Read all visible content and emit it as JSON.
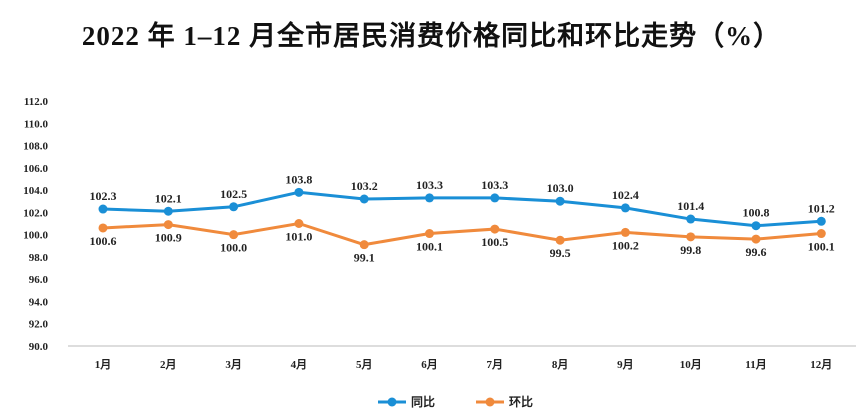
{
  "chart_data": {
    "type": "line",
    "title": "2022 年 1–12 月全市居民消费价格同比和环比走势（%）",
    "categories": [
      "1月",
      "2月",
      "3月",
      "4月",
      "5月",
      "6月",
      "7月",
      "8月",
      "9月",
      "10月",
      "11月",
      "12月"
    ],
    "series": [
      {
        "name": "同比",
        "color": "#1a8fd6",
        "values": [
          102.3,
          102.1,
          102.5,
          103.8,
          103.2,
          103.3,
          103.3,
          103.0,
          102.4,
          101.4,
          100.8,
          101.2
        ]
      },
      {
        "name": "环比",
        "color": "#f08a3c",
        "values": [
          100.6,
          100.9,
          100.0,
          101.0,
          99.1,
          100.1,
          100.5,
          99.5,
          100.2,
          99.8,
          99.6,
          100.1
        ]
      }
    ],
    "ylim": [
      90,
      112
    ],
    "yticks": [
      "90.0",
      "92.0",
      "94.0",
      "96.0",
      "98.0",
      "100.0",
      "102.0",
      "104.0",
      "106.0",
      "108.0",
      "110.0",
      "112.0"
    ],
    "grid": false,
    "legend": "bottom"
  }
}
